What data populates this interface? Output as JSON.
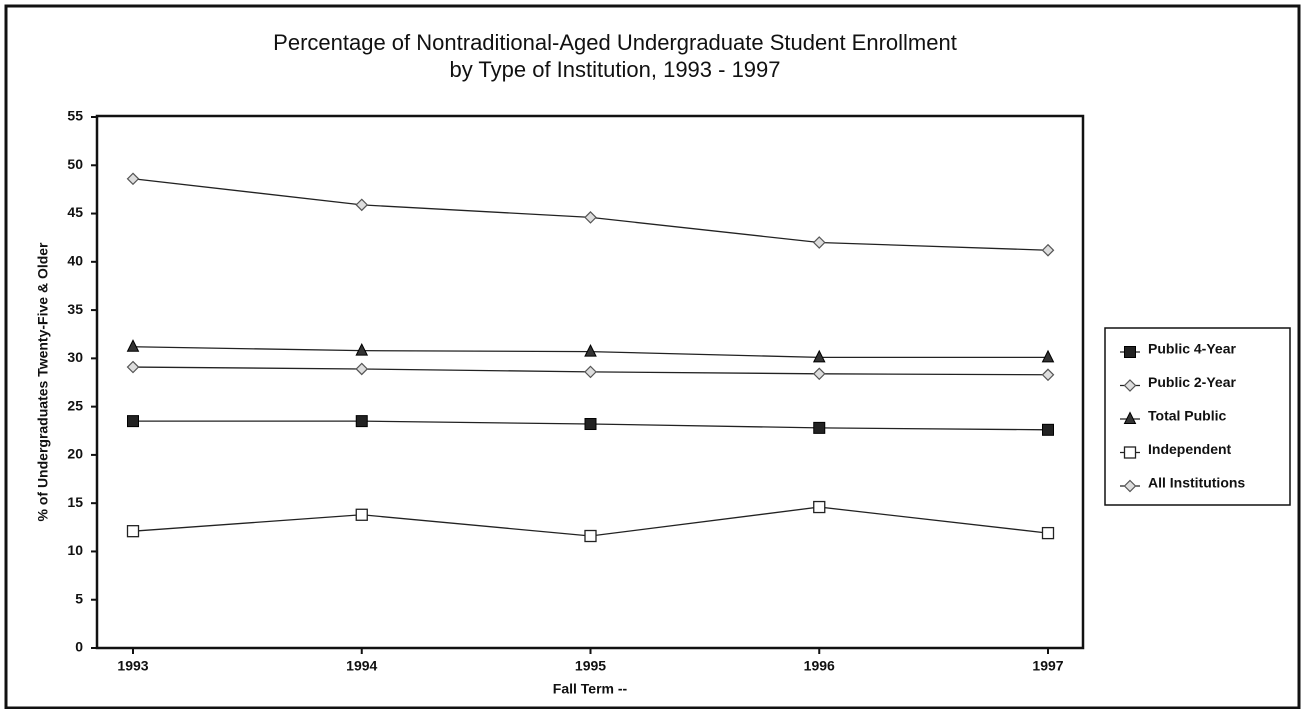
{
  "chart_data": {
    "type": "line",
    "title": "Percentage of Nontraditional-Aged Undergraduate Student Enrollment",
    "subtitle": "by Type of Institution, 1993 - 1997",
    "x_label": "Fall Term --",
    "y_label": "% of Undergraduates Twenty-Five & Older",
    "categories": [
      "1993",
      "1994",
      "1995",
      "1996",
      "1997"
    ],
    "series": [
      {
        "name": "Public 4-Year",
        "color": "#222222",
        "marker": "square-filled",
        "values": [
          23.5,
          23.5,
          23.2,
          22.8,
          22.6
        ]
      },
      {
        "name": "Public 2-Year",
        "color": "#555555",
        "marker": "diamond",
        "values": [
          48.6,
          45.9,
          44.6,
          42.0,
          41.2
        ]
      },
      {
        "name": "Total Public",
        "color": "#333333",
        "marker": "triangle",
        "values": [
          31.2,
          30.8,
          30.7,
          30.1,
          30.1
        ]
      },
      {
        "name": "Independent",
        "color": "#222222",
        "marker": "square-open",
        "values": [
          12.1,
          13.8,
          11.6,
          14.6,
          11.9
        ]
      },
      {
        "name": "All Institutions",
        "color": "#555555",
        "marker": "diamond",
        "values": [
          29.1,
          28.9,
          28.6,
          28.4,
          28.3
        ]
      }
    ],
    "ylim": [
      0,
      55
    ],
    "yticks": [
      0,
      5,
      10,
      15,
      20,
      25,
      30,
      35,
      40,
      45,
      50,
      55
    ],
    "legend": "right"
  }
}
